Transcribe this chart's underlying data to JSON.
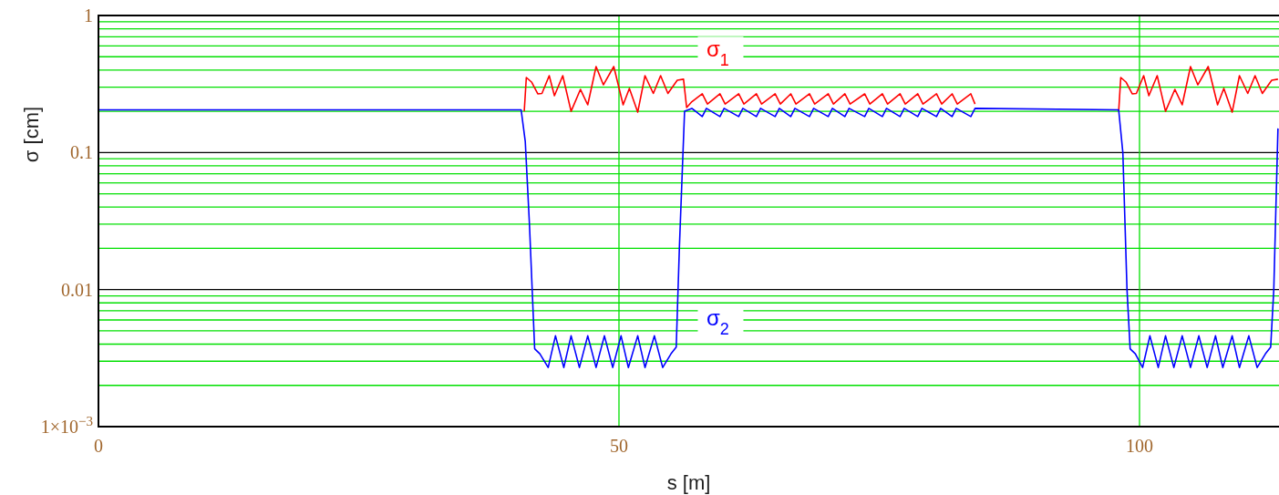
{
  "chart_data": {
    "type": "line",
    "xlabel": "s [m]",
    "ylabel": "σ [cm]",
    "log": "y",
    "grid": true,
    "xlim": [
      0,
      113.4
    ],
    "xticks": [
      0,
      50,
      100
    ],
    "ylim": [
      0.001,
      1
    ],
    "yticks": [
      {
        "value": 0.001,
        "label": "1×10$^{−3}$"
      },
      {
        "value": 0.002,
        "label": null
      },
      {
        "value": 0.003,
        "label": null
      },
      {
        "value": 0.004,
        "label": null
      },
      {
        "value": 0.005,
        "label": null
      },
      {
        "value": 0.006,
        "label": null
      },
      {
        "value": 0.007,
        "label": null
      },
      {
        "value": 0.008,
        "label": null
      },
      {
        "value": 0.009,
        "label": null
      },
      0.01,
      {
        "value": 0.02,
        "label": null
      },
      {
        "value": 0.03,
        "label": null
      },
      {
        "value": 0.04,
        "label": null
      },
      {
        "value": 0.05,
        "label": null
      },
      {
        "value": 0.06,
        "label": null
      },
      {
        "value": 0.07,
        "label": null
      },
      {
        "value": 0.08,
        "label": null
      },
      {
        "value": 0.09,
        "label": null
      },
      0.1,
      {
        "value": 0.2,
        "label": null
      },
      {
        "value": 0.3,
        "label": null
      },
      {
        "value": 0.4,
        "label": null
      },
      {
        "value": 0.5,
        "label": null
      },
      {
        "value": 0.6,
        "label": null
      },
      {
        "value": 0.7,
        "label": null
      },
      {
        "value": 0.8,
        "label": null
      },
      {
        "value": 0.9,
        "label": null
      },
      1
    ],
    "series": [
      {
        "name": "σ$_{1}$",
        "color": "#ff0000",
        "x": [
          40.9,
          41.1,
          41.6,
          42.2,
          42.6,
          43.3,
          43.8,
          44.6,
          45.4,
          46.3,
          47.0,
          47.8,
          48.5,
          49.5,
          50.4,
          51.0,
          51.8,
          52.5,
          53.3,
          54.0,
          54.7,
          55.6,
          56.2,
          56.5,
          57.0,
          58.0,
          58.5,
          59.7,
          60.2,
          61.5,
          62.0,
          63.2,
          63.7,
          65.0,
          65.5,
          66.5,
          67.0,
          68.3,
          68.8,
          70.1,
          70.6,
          71.7,
          72.2,
          73.6,
          74.1,
          75.3,
          75.8,
          77.0,
          77.5,
          78.7,
          79.2,
          80.5,
          81.0,
          82.0,
          82.5,
          83.8,
          84.2,
          90.0,
          98.0,
          98.2,
          98.7,
          99.3,
          99.7,
          100.4,
          100.9,
          101.7,
          102.5,
          103.4,
          104.1,
          104.9,
          105.6,
          106.6,
          107.5,
          108.1,
          108.9,
          109.6,
          110.4,
          111.1,
          111.8,
          112.7,
          113.3
        ],
        "values": [
          0.2,
          0.353,
          0.327,
          0.268,
          0.27,
          0.364,
          0.26,
          0.364,
          0.2,
          0.289,
          0.223,
          0.424,
          0.312,
          0.424,
          0.223,
          0.294,
          0.197,
          0.364,
          0.27,
          0.364,
          0.27,
          0.337,
          0.343,
          0.213,
          0.235,
          0.268,
          0.226,
          0.268,
          0.226,
          0.268,
          0.226,
          0.268,
          0.226,
          0.268,
          0.226,
          0.268,
          0.226,
          0.268,
          0.226,
          0.268,
          0.226,
          0.268,
          0.226,
          0.268,
          0.226,
          0.268,
          0.226,
          0.268,
          0.226,
          0.268,
          0.226,
          0.268,
          0.226,
          0.268,
          0.226,
          0.268,
          0.226,
          null,
          0.2,
          0.353,
          0.327,
          0.268,
          0.27,
          0.364,
          0.26,
          0.364,
          0.2,
          0.289,
          0.223,
          0.424,
          0.312,
          0.424,
          0.223,
          0.294,
          0.197,
          0.364,
          0.27,
          0.364,
          0.27,
          0.337,
          0.343
        ]
      },
      {
        "name": "σ$_{2}$",
        "color": "#0000ff",
        "x": [
          0,
          40.6,
          41.0,
          41.4,
          41.9,
          42.4,
          43.2,
          43.9,
          44.7,
          45.4,
          46.2,
          47.0,
          47.8,
          48.6,
          49.4,
          50.2,
          50.9,
          51.8,
          52.5,
          53.4,
          54.2,
          55.0,
          55.5,
          55.8,
          56.3,
          57.0,
          58.0,
          58.4,
          59.7,
          60.1,
          61.5,
          61.9,
          63.2,
          63.6,
          65.0,
          65.4,
          66.5,
          66.9,
          68.3,
          68.7,
          70.1,
          70.5,
          71.7,
          72.1,
          73.6,
          74.0,
          75.3,
          75.7,
          77.0,
          77.4,
          78.7,
          79.1,
          80.5,
          80.9,
          82.0,
          82.4,
          83.8,
          84.2,
          98.0,
          98.4,
          98.8,
          99.1,
          99.6,
          100.3,
          101.0,
          101.8,
          102.5,
          103.3,
          104.1,
          104.9,
          105.7,
          106.5,
          107.3,
          108.0,
          108.9,
          109.6,
          110.5,
          111.3,
          112.1,
          112.6,
          112.9,
          113.3
        ],
        "values": [
          0.205,
          0.205,
          0.12,
          0.03,
          0.0037,
          0.0034,
          0.0027,
          0.0046,
          0.0027,
          0.0046,
          0.0027,
          0.0046,
          0.0027,
          0.0046,
          0.0027,
          0.0046,
          0.0027,
          0.0046,
          0.0027,
          0.0046,
          0.0027,
          0.0034,
          0.0038,
          0.02,
          0.2,
          0.21,
          0.183,
          0.21,
          0.183,
          0.21,
          0.183,
          0.21,
          0.183,
          0.21,
          0.183,
          0.21,
          0.183,
          0.21,
          0.183,
          0.21,
          0.183,
          0.21,
          0.183,
          0.21,
          0.183,
          0.21,
          0.183,
          0.21,
          0.183,
          0.21,
          0.183,
          0.21,
          0.183,
          0.21,
          0.183,
          0.21,
          0.183,
          0.21,
          0.205,
          0.1,
          0.01,
          0.0037,
          0.0034,
          0.0027,
          0.0046,
          0.0027,
          0.0046,
          0.0027,
          0.0046,
          0.0027,
          0.0046,
          0.0027,
          0.0046,
          0.0027,
          0.0046,
          0.0027,
          0.0046,
          0.0027,
          0.0034,
          0.0038,
          0.01,
          0.15
        ]
      }
    ]
  }
}
